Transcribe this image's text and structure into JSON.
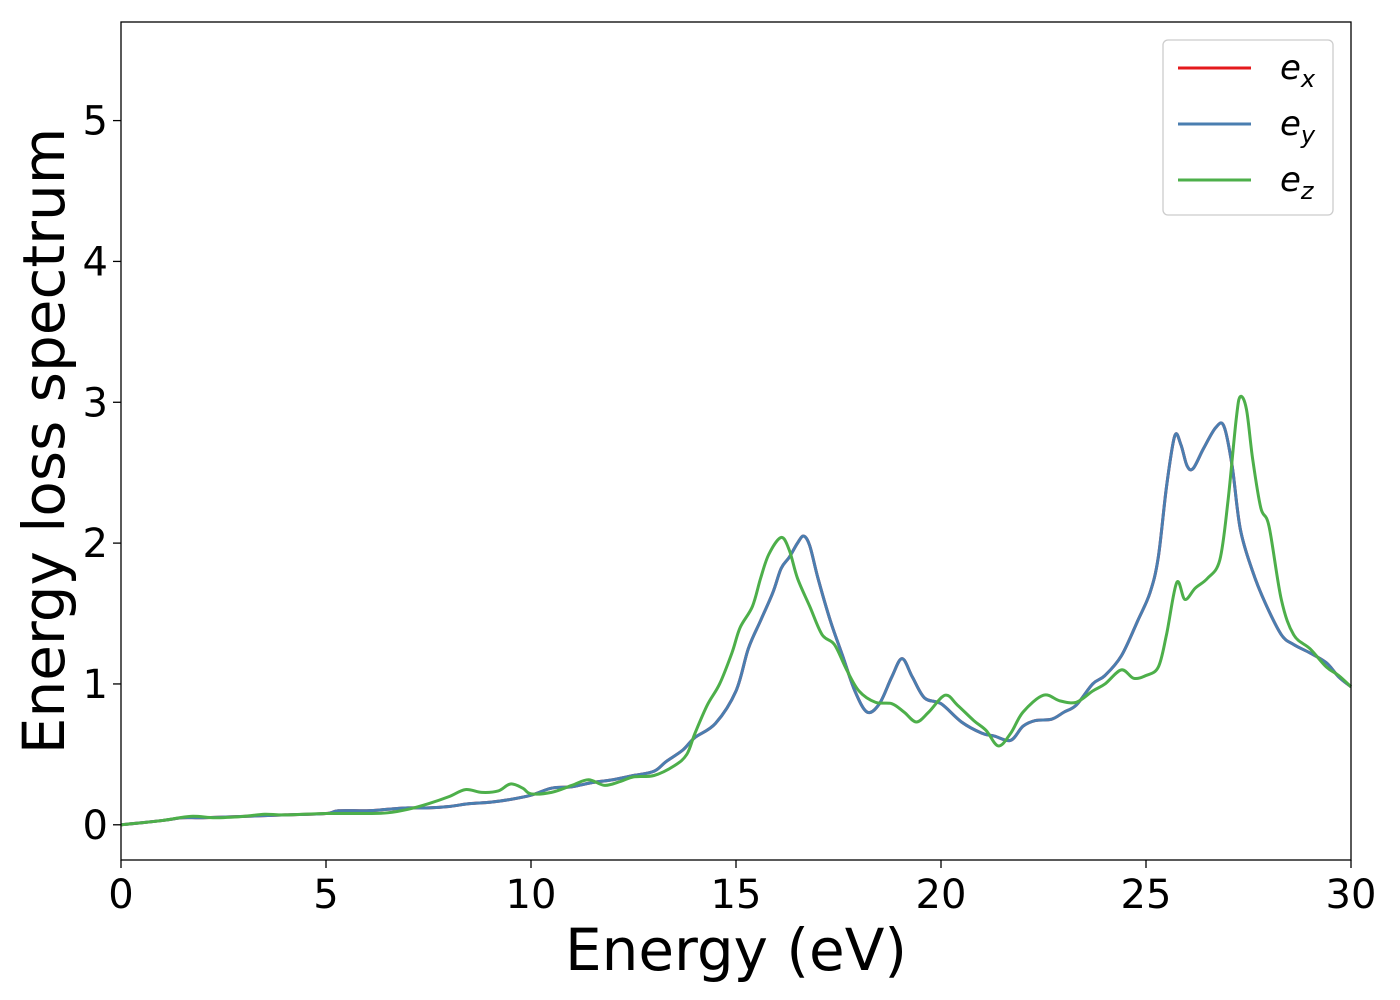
{
  "chart_data": {
    "type": "line",
    "title": "",
    "xlabel": "Energy (eV)",
    "ylabel": "Energy loss spectrum",
    "xlim": [
      0,
      30
    ],
    "ylim": [
      -0.25,
      5.7
    ],
    "xticks": [
      0,
      5,
      10,
      15,
      20,
      25,
      30
    ],
    "yticks": [
      0,
      1,
      2,
      3,
      4,
      5
    ],
    "grid": false,
    "legend_position": "top-right",
    "series": [
      {
        "name": "e_x",
        "legend_base": "e",
        "legend_sub": "x",
        "color": "#e41a1c",
        "points": [
          [
            0,
            0
          ],
          [
            1,
            0.03
          ],
          [
            1.5,
            0.05
          ],
          [
            2,
            0.05
          ],
          [
            3,
            0.06
          ],
          [
            4,
            0.07
          ],
          [
            5,
            0.08
          ],
          [
            5.3,
            0.1
          ],
          [
            6,
            0.1
          ],
          [
            6.5,
            0.11
          ],
          [
            7,
            0.12
          ],
          [
            7.5,
            0.12
          ],
          [
            8,
            0.13
          ],
          [
            8.5,
            0.15
          ],
          [
            9,
            0.16
          ],
          [
            9.5,
            0.18
          ],
          [
            10,
            0.21
          ],
          [
            10.5,
            0.26
          ],
          [
            11,
            0.27
          ],
          [
            11.5,
            0.3
          ],
          [
            12,
            0.32
          ],
          [
            12.5,
            0.35
          ],
          [
            13,
            0.38
          ],
          [
            13.3,
            0.45
          ],
          [
            13.7,
            0.53
          ],
          [
            14,
            0.62
          ],
          [
            14.5,
            0.72
          ],
          [
            15,
            0.95
          ],
          [
            15.3,
            1.25
          ],
          [
            15.6,
            1.45
          ],
          [
            15.9,
            1.65
          ],
          [
            16.1,
            1.82
          ],
          [
            16.3,
            1.9
          ],
          [
            16.5,
            2.0
          ],
          [
            16.65,
            2.05
          ],
          [
            16.8,
            1.98
          ],
          [
            17,
            1.75
          ],
          [
            17.3,
            1.45
          ],
          [
            17.6,
            1.2
          ],
          [
            17.9,
            0.95
          ],
          [
            18.2,
            0.8
          ],
          [
            18.5,
            0.86
          ],
          [
            18.8,
            1.05
          ],
          [
            19.05,
            1.18
          ],
          [
            19.3,
            1.05
          ],
          [
            19.6,
            0.9
          ],
          [
            20,
            0.86
          ],
          [
            20.5,
            0.73
          ],
          [
            21,
            0.65
          ],
          [
            21.3,
            0.63
          ],
          [
            21.7,
            0.6
          ],
          [
            22,
            0.7
          ],
          [
            22.3,
            0.74
          ],
          [
            22.7,
            0.75
          ],
          [
            23,
            0.8
          ],
          [
            23.3,
            0.85
          ],
          [
            23.7,
            1.0
          ],
          [
            24,
            1.06
          ],
          [
            24.4,
            1.2
          ],
          [
            24.8,
            1.45
          ],
          [
            25.1,
            1.65
          ],
          [
            25.3,
            1.9
          ],
          [
            25.5,
            2.4
          ],
          [
            25.7,
            2.76
          ],
          [
            25.85,
            2.7
          ],
          [
            26,
            2.55
          ],
          [
            26.15,
            2.53
          ],
          [
            26.4,
            2.67
          ],
          [
            26.7,
            2.82
          ],
          [
            26.9,
            2.83
          ],
          [
            27.1,
            2.55
          ],
          [
            27.3,
            2.1
          ],
          [
            27.6,
            1.8
          ],
          [
            27.9,
            1.58
          ],
          [
            28.3,
            1.35
          ],
          [
            28.6,
            1.28
          ],
          [
            29,
            1.22
          ],
          [
            29.4,
            1.15
          ],
          [
            29.7,
            1.05
          ],
          [
            30,
            0.98
          ]
        ]
      },
      {
        "name": "e_y",
        "legend_base": "e",
        "legend_sub": "y",
        "color": "#4a7eb0",
        "points": [
          [
            0,
            0
          ],
          [
            1,
            0.03
          ],
          [
            1.5,
            0.05
          ],
          [
            2,
            0.05
          ],
          [
            3,
            0.06
          ],
          [
            4,
            0.07
          ],
          [
            5,
            0.08
          ],
          [
            5.3,
            0.1
          ],
          [
            6,
            0.1
          ],
          [
            6.5,
            0.11
          ],
          [
            7,
            0.12
          ],
          [
            7.5,
            0.12
          ],
          [
            8,
            0.13
          ],
          [
            8.5,
            0.15
          ],
          [
            9,
            0.16
          ],
          [
            9.5,
            0.18
          ],
          [
            10,
            0.21
          ],
          [
            10.5,
            0.26
          ],
          [
            11,
            0.27
          ],
          [
            11.5,
            0.3
          ],
          [
            12,
            0.32
          ],
          [
            12.5,
            0.35
          ],
          [
            13,
            0.38
          ],
          [
            13.3,
            0.45
          ],
          [
            13.7,
            0.53
          ],
          [
            14,
            0.62
          ],
          [
            14.5,
            0.72
          ],
          [
            15,
            0.95
          ],
          [
            15.3,
            1.25
          ],
          [
            15.6,
            1.45
          ],
          [
            15.9,
            1.65
          ],
          [
            16.1,
            1.82
          ],
          [
            16.3,
            1.9
          ],
          [
            16.5,
            2.0
          ],
          [
            16.65,
            2.05
          ],
          [
            16.8,
            1.98
          ],
          [
            17,
            1.75
          ],
          [
            17.3,
            1.45
          ],
          [
            17.6,
            1.2
          ],
          [
            17.9,
            0.95
          ],
          [
            18.2,
            0.8
          ],
          [
            18.5,
            0.86
          ],
          [
            18.8,
            1.05
          ],
          [
            19.05,
            1.18
          ],
          [
            19.3,
            1.05
          ],
          [
            19.6,
            0.9
          ],
          [
            20,
            0.86
          ],
          [
            20.5,
            0.73
          ],
          [
            21,
            0.65
          ],
          [
            21.3,
            0.63
          ],
          [
            21.7,
            0.6
          ],
          [
            22,
            0.7
          ],
          [
            22.3,
            0.74
          ],
          [
            22.7,
            0.75
          ],
          [
            23,
            0.8
          ],
          [
            23.3,
            0.85
          ],
          [
            23.7,
            1.0
          ],
          [
            24,
            1.06
          ],
          [
            24.4,
            1.2
          ],
          [
            24.8,
            1.45
          ],
          [
            25.1,
            1.65
          ],
          [
            25.3,
            1.9
          ],
          [
            25.5,
            2.4
          ],
          [
            25.7,
            2.76
          ],
          [
            25.85,
            2.7
          ],
          [
            26,
            2.55
          ],
          [
            26.15,
            2.53
          ],
          [
            26.4,
            2.67
          ],
          [
            26.7,
            2.82
          ],
          [
            26.9,
            2.83
          ],
          [
            27.1,
            2.55
          ],
          [
            27.3,
            2.1
          ],
          [
            27.6,
            1.8
          ],
          [
            27.9,
            1.58
          ],
          [
            28.3,
            1.35
          ],
          [
            28.6,
            1.28
          ],
          [
            29,
            1.22
          ],
          [
            29.4,
            1.15
          ],
          [
            29.7,
            1.05
          ],
          [
            30,
            0.98
          ]
        ]
      },
      {
        "name": "e_z",
        "legend_base": "e",
        "legend_sub": "z",
        "color": "#4daf4a",
        "points": [
          [
            0,
            0
          ],
          [
            1,
            0.03
          ],
          [
            1.7,
            0.06
          ],
          [
            2.3,
            0.05
          ],
          [
            3,
            0.06
          ],
          [
            3.5,
            0.075
          ],
          [
            4,
            0.07
          ],
          [
            5,
            0.08
          ],
          [
            6,
            0.08
          ],
          [
            6.5,
            0.085
          ],
          [
            7,
            0.11
          ],
          [
            7.5,
            0.15
          ],
          [
            8,
            0.2
          ],
          [
            8.4,
            0.25
          ],
          [
            8.8,
            0.23
          ],
          [
            9.2,
            0.24
          ],
          [
            9.5,
            0.29
          ],
          [
            9.8,
            0.26
          ],
          [
            10,
            0.22
          ],
          [
            10.5,
            0.23
          ],
          [
            11,
            0.28
          ],
          [
            11.4,
            0.32
          ],
          [
            11.8,
            0.28
          ],
          [
            12.2,
            0.31
          ],
          [
            12.5,
            0.34
          ],
          [
            13,
            0.35
          ],
          [
            13.5,
            0.42
          ],
          [
            13.8,
            0.5
          ],
          [
            14,
            0.65
          ],
          [
            14.3,
            0.85
          ],
          [
            14.6,
            1.0
          ],
          [
            14.9,
            1.22
          ],
          [
            15.1,
            1.4
          ],
          [
            15.4,
            1.55
          ],
          [
            15.6,
            1.75
          ],
          [
            15.8,
            1.92
          ],
          [
            16.1,
            2.04
          ],
          [
            16.3,
            1.95
          ],
          [
            16.5,
            1.75
          ],
          [
            16.8,
            1.55
          ],
          [
            17.1,
            1.35
          ],
          [
            17.4,
            1.28
          ],
          [
            17.7,
            1.1
          ],
          [
            18,
            0.95
          ],
          [
            18.4,
            0.87
          ],
          [
            18.8,
            0.86
          ],
          [
            19.1,
            0.8
          ],
          [
            19.4,
            0.73
          ],
          [
            19.7,
            0.8
          ],
          [
            20.1,
            0.92
          ],
          [
            20.4,
            0.85
          ],
          [
            20.8,
            0.74
          ],
          [
            21.1,
            0.67
          ],
          [
            21.4,
            0.56
          ],
          [
            21.7,
            0.65
          ],
          [
            22,
            0.8
          ],
          [
            22.5,
            0.92
          ],
          [
            22.9,
            0.88
          ],
          [
            23.3,
            0.87
          ],
          [
            23.7,
            0.95
          ],
          [
            24,
            1.0
          ],
          [
            24.4,
            1.1
          ],
          [
            24.7,
            1.04
          ],
          [
            25,
            1.06
          ],
          [
            25.3,
            1.12
          ],
          [
            25.5,
            1.35
          ],
          [
            25.75,
            1.72
          ],
          [
            25.95,
            1.6
          ],
          [
            26.2,
            1.68
          ],
          [
            26.5,
            1.75
          ],
          [
            26.8,
            1.88
          ],
          [
            27,
            2.3
          ],
          [
            27.2,
            2.88
          ],
          [
            27.3,
            3.04
          ],
          [
            27.45,
            2.95
          ],
          [
            27.6,
            2.6
          ],
          [
            27.8,
            2.25
          ],
          [
            28,
            2.12
          ],
          [
            28.3,
            1.6
          ],
          [
            28.6,
            1.35
          ],
          [
            29,
            1.25
          ],
          [
            29.4,
            1.12
          ],
          [
            29.7,
            1.06
          ],
          [
            30,
            0.98
          ]
        ]
      }
    ]
  }
}
